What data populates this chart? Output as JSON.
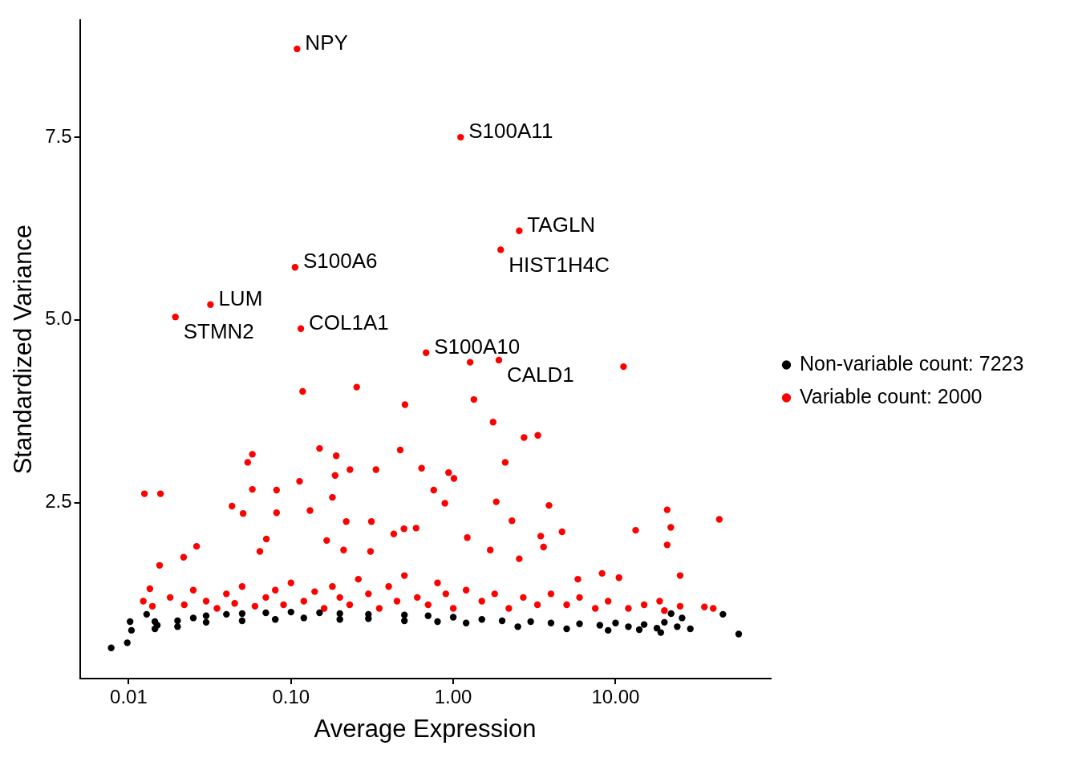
{
  "chart_data": {
    "type": "scatter",
    "xlabel": "Average Expression",
    "ylabel": "Standardized Variance",
    "log": "x",
    "grid": false,
    "legend": "right",
    "marker": "circle",
    "xlim": [
      0.005,
      90
    ],
    "ylim": [
      0.09,
      9.1
    ],
    "xticks": [
      {
        "value": 0.01,
        "label": "0.01"
      },
      {
        "value": 0.1,
        "label": "0.10"
      },
      {
        "value": 1,
        "label": "1.00"
      },
      {
        "value": 10,
        "label": "10.00"
      }
    ],
    "yticks": [
      2.5,
      {
        "value": 5,
        "label": "5.0"
      },
      7.5
    ],
    "series": [
      {
        "name": "Non-variable count: 7223",
        "color": "#000000",
        "x": [
          0.0078,
          0.0098,
          0.0104,
          0.0102,
          0.0129,
          0.0145,
          0.0145,
          45.9,
          57.4,
          28.9,
          25.7,
          0.015,
          0.02,
          0.025,
          0.03,
          0.04,
          0.05,
          0.07,
          0.1,
          0.15,
          0.2,
          0.3,
          0.5,
          0.7,
          1,
          1.5,
          2,
          3,
          4,
          6,
          8,
          10,
          12,
          15,
          18,
          20,
          22,
          24,
          0.02,
          0.03,
          0.05,
          0.08,
          0.12,
          0.2,
          0.3,
          0.5,
          0.8,
          1.2,
          2.5,
          5,
          9,
          14,
          19
        ],
        "values": [
          0.51,
          0.58,
          0.75,
          0.87,
          0.97,
          0.87,
          0.77,
          0.97,
          0.7,
          0.77,
          0.92,
          0.82,
          0.88,
          0.92,
          0.95,
          0.97,
          0.98,
          0.99,
          1.0,
          0.99,
          0.98,
          0.97,
          0.96,
          0.95,
          0.93,
          0.9,
          0.88,
          0.87,
          0.85,
          0.84,
          0.82,
          0.85,
          0.8,
          0.83,
          0.78,
          0.86,
          0.98,
          0.8,
          0.8,
          0.86,
          0.88,
          0.9,
          0.92,
          0.9,
          0.91,
          0.88,
          0.87,
          0.85,
          0.8,
          0.77,
          0.75,
          0.76,
          0.72
        ]
      },
      {
        "name": "Variable count: 2000",
        "color": "#ff0000",
        "x": [
          0.109,
          1.11,
          2.55,
          1.96,
          0.106,
          0.0319,
          0.0194,
          0.115,
          0.68,
          1.91,
          1.27,
          11.2,
          0.118,
          0.254,
          0.504,
          1.34,
          1.76,
          2.73,
          3.32,
          2.09,
          0.15,
          0.471,
          0.0578,
          0.0541,
          0.19,
          0.936,
          1.01,
          0.231,
          0.334,
          0.187,
          0.113,
          0.638,
          0.0578,
          0.0815,
          0.758,
          0.0125,
          0.0157,
          0.18,
          0.0433,
          0.0507,
          0.0815,
          0.131,
          0.219,
          0.313,
          0.888,
          1.84,
          2.3,
          3.89,
          20.8,
          43.6,
          21.9,
          13.3,
          20.8,
          3.46,
          4.68,
          3.6,
          1.22,
          0.497,
          0.59,
          0.43,
          0.0155,
          0.0262,
          0.0705,
          0.0643,
          0.0218,
          8.26,
          10.5,
          25,
          5.86,
          2.55,
          1.69,
          0.309,
          0.166,
          0.211,
          0.0123,
          0.0135,
          35.3,
          18.7,
          0.014,
          0.018,
          0.022,
          0.025,
          0.03,
          0.035,
          0.04,
          0.045,
          0.05,
          0.06,
          0.07,
          0.08,
          0.09,
          0.1,
          0.12,
          0.14,
          0.16,
          0.18,
          0.2,
          0.23,
          0.26,
          0.3,
          0.35,
          0.4,
          0.45,
          0.5,
          0.6,
          0.7,
          0.8,
          0.9,
          1,
          1.2,
          1.5,
          1.8,
          2.2,
          2.7,
          3.3,
          4,
          5,
          6,
          7.5,
          9,
          12,
          15,
          20,
          25,
          40
        ],
        "values": [
          8.71,
          7.5,
          6.22,
          5.96,
          5.72,
          5.21,
          5.04,
          4.88,
          4.55,
          4.45,
          4.42,
          4.36,
          4.02,
          4.08,
          3.84,
          3.91,
          3.6,
          3.39,
          3.42,
          3.05,
          3.24,
          3.22,
          3.16,
          3.05,
          3.14,
          2.91,
          2.83,
          2.95,
          2.95,
          2.87,
          2.79,
          2.97,
          2.68,
          2.67,
          2.67,
          2.62,
          2.62,
          2.57,
          2.45,
          2.35,
          2.36,
          2.39,
          2.24,
          2.24,
          2.49,
          2.51,
          2.25,
          2.46,
          2.4,
          2.27,
          2.16,
          2.12,
          1.92,
          2.04,
          2.1,
          1.89,
          2.02,
          2.14,
          2.15,
          2.07,
          1.64,
          1.9,
          2.0,
          1.83,
          1.75,
          1.53,
          1.47,
          1.5,
          1.45,
          1.73,
          1.85,
          1.83,
          1.98,
          1.85,
          1.15,
          1.32,
          1.07,
          1.15,
          1.08,
          1.2,
          1.1,
          1.3,
          1.15,
          1.05,
          1.25,
          1.12,
          1.35,
          1.08,
          1.2,
          1.3,
          1.1,
          1.4,
          1.15,
          1.28,
          1.05,
          1.35,
          1.2,
          1.1,
          1.45,
          1.25,
          1.05,
          1.35,
          1.15,
          1.5,
          1.2,
          1.1,
          1.4,
          1.25,
          1.05,
          1.3,
          1.15,
          1.25,
          1.05,
          1.2,
          1.1,
          1.25,
          1.1,
          1.2,
          1.05,
          1.15,
          1.05,
          1.1,
          1.02,
          1.08,
          1.05
        ]
      }
    ],
    "annotations": [
      {
        "text": "NPY",
        "x": 0.109,
        "y": 8.71
      },
      {
        "text": "S100A11",
        "x": 1.11,
        "y": 7.5
      },
      {
        "text": "TAGLN",
        "x": 2.55,
        "y": 6.22
      },
      {
        "text": "HIST1H4C",
        "x": 1.96,
        "y": 5.96
      },
      {
        "text": "S100A6",
        "x": 0.106,
        "y": 5.72
      },
      {
        "text": "LUM",
        "x": 0.0319,
        "y": 5.21
      },
      {
        "text": "STMN2",
        "x": 0.0194,
        "y": 5.04
      },
      {
        "text": "COL1A1",
        "x": 0.115,
        "y": 4.88
      },
      {
        "text": "S100A10",
        "x": 0.68,
        "y": 4.55
      },
      {
        "text": "CALD1",
        "x": 1.91,
        "y": 4.45
      }
    ]
  }
}
